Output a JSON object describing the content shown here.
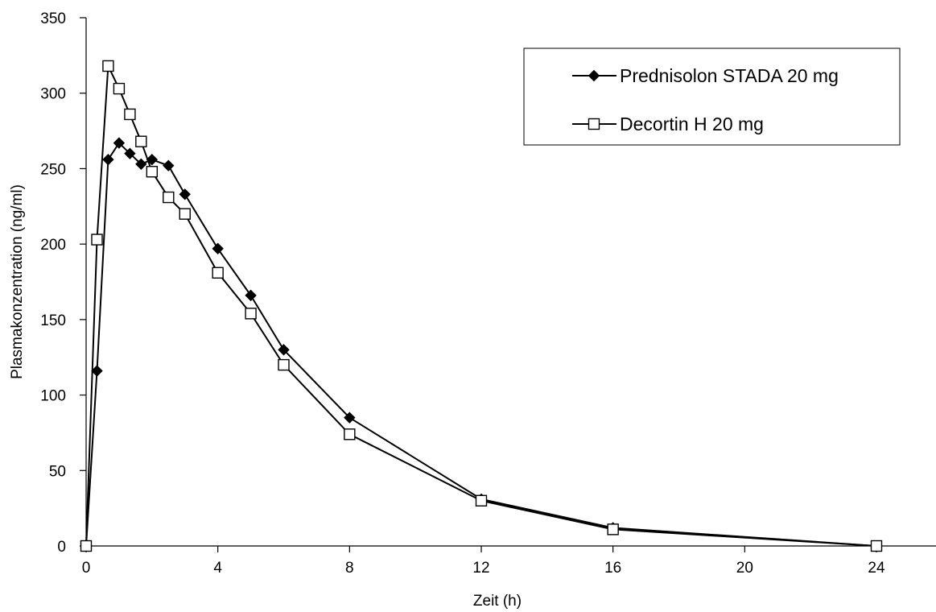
{
  "chart_data": {
    "type": "line",
    "title": "",
    "xlabel": "Zeit (h)",
    "ylabel": "Plasmakonzentration (ng/ml)",
    "xlim": [
      0,
      26
    ],
    "ylim": [
      0,
      350
    ],
    "xticks": [
      0,
      4,
      8,
      12,
      16,
      20,
      24
    ],
    "yticks": [
      0,
      50,
      100,
      150,
      200,
      250,
      300,
      350
    ],
    "xtick_labels": [
      "0",
      "4",
      "8",
      "12",
      "16",
      "20",
      "24"
    ],
    "ytick_labels": [
      "0",
      "50",
      "100",
      "150",
      "200",
      "250",
      "300",
      "350"
    ],
    "grid": false,
    "legend_position": "top-right",
    "series": [
      {
        "name": "Prednisolon STADA 20 mg",
        "marker": "diamond-filled",
        "color": "#000000",
        "x": [
          0,
          0.33,
          0.67,
          1,
          1.33,
          1.67,
          2,
          2.5,
          3,
          4,
          5,
          6,
          8,
          12,
          16,
          24
        ],
        "y": [
          0,
          116,
          256,
          267,
          260,
          253,
          256,
          252,
          233,
          197,
          166,
          130,
          85,
          31,
          12,
          0
        ]
      },
      {
        "name": "Decortin H 20 mg",
        "marker": "square-open",
        "color": "#000000",
        "x": [
          0,
          0.33,
          0.67,
          1,
          1.33,
          1.67,
          2,
          2.5,
          3,
          4,
          5,
          6,
          8,
          12,
          16,
          24
        ],
        "y": [
          0,
          203,
          318,
          303,
          286,
          268,
          248,
          231,
          220,
          181,
          154,
          120,
          74,
          30,
          11,
          0
        ]
      }
    ]
  }
}
